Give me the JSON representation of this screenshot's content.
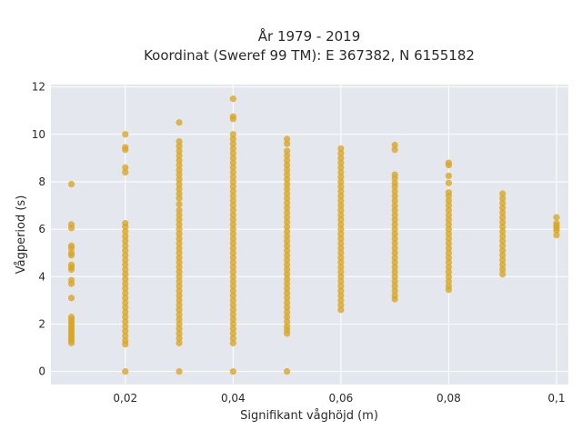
{
  "chart_data": {
    "type": "scatter",
    "title_line1": "År 1979 - 2019",
    "title_line2": "Koordinat (Sweref 99 TM): E 367382, N 6155182",
    "xlabel": "Signifikant våghöjd (m)",
    "ylabel": "Vågperiod (s)",
    "xlim": [
      0.0062,
      0.1022
    ],
    "ylim": [
      -0.55,
      12.1
    ],
    "x_ticks": [
      0.02,
      0.04,
      0.06,
      0.08,
      0.1
    ],
    "x_tick_labels": [
      "0,02",
      "0,04",
      "0,06",
      "0,08",
      "0,1"
    ],
    "y_ticks": [
      0,
      2,
      4,
      6,
      8,
      10,
      12
    ],
    "y_tick_labels": [
      "0",
      "2",
      "4",
      "6",
      "8",
      "10",
      "12"
    ],
    "grid": true,
    "background": "#e5e7ee",
    "marker_color": "#daa520",
    "series": [
      {
        "points": [
          [
            0.01,
            7.9
          ],
          [
            0.01,
            6.2
          ],
          [
            0.01,
            6.05
          ],
          [
            0.01,
            5.3
          ],
          [
            0.01,
            5.2
          ],
          [
            0.01,
            5.0
          ],
          [
            0.01,
            4.9
          ],
          [
            0.01,
            4.5
          ],
          [
            0.01,
            4.4
          ],
          [
            0.01,
            4.3
          ],
          [
            0.01,
            3.85
          ],
          [
            0.01,
            3.7
          ],
          [
            0.01,
            3.1
          ],
          [
            0.01,
            2.3
          ],
          [
            0.01,
            2.2
          ],
          [
            0.01,
            2.1
          ],
          [
            0.01,
            2.0
          ],
          [
            0.01,
            1.9
          ],
          [
            0.01,
            1.8
          ],
          [
            0.01,
            1.7
          ],
          [
            0.01,
            1.6
          ],
          [
            0.01,
            1.5
          ],
          [
            0.01,
            1.4
          ],
          [
            0.01,
            1.3
          ],
          [
            0.01,
            1.2
          ],
          [
            0.02,
            10.0
          ],
          [
            0.02,
            9.45
          ],
          [
            0.02,
            9.35
          ],
          [
            0.02,
            8.6
          ],
          [
            0.02,
            8.4
          ],
          [
            0.02,
            6.25
          ],
          [
            0.02,
            6.1
          ],
          [
            0.02,
            5.9
          ],
          [
            0.02,
            5.7
          ],
          [
            0.02,
            5.5
          ],
          [
            0.02,
            5.3
          ],
          [
            0.02,
            5.1
          ],
          [
            0.02,
            4.9
          ],
          [
            0.02,
            4.7
          ],
          [
            0.02,
            4.5
          ],
          [
            0.02,
            4.3
          ],
          [
            0.02,
            4.1
          ],
          [
            0.02,
            3.9
          ],
          [
            0.02,
            3.7
          ],
          [
            0.02,
            3.5
          ],
          [
            0.02,
            3.3
          ],
          [
            0.02,
            3.1
          ],
          [
            0.02,
            2.9
          ],
          [
            0.02,
            2.7
          ],
          [
            0.02,
            2.5
          ],
          [
            0.02,
            2.3
          ],
          [
            0.02,
            2.1
          ],
          [
            0.02,
            1.9
          ],
          [
            0.02,
            1.7
          ],
          [
            0.02,
            1.5
          ],
          [
            0.02,
            1.3
          ],
          [
            0.02,
            1.15
          ],
          [
            0.02,
            0.0
          ],
          [
            0.03,
            10.5
          ],
          [
            0.03,
            9.7
          ],
          [
            0.03,
            9.5
          ],
          [
            0.03,
            9.3
          ],
          [
            0.03,
            9.1
          ],
          [
            0.03,
            8.9
          ],
          [
            0.03,
            8.7
          ],
          [
            0.03,
            8.5
          ],
          [
            0.03,
            8.3
          ],
          [
            0.03,
            8.1
          ],
          [
            0.03,
            7.9
          ],
          [
            0.03,
            7.7
          ],
          [
            0.03,
            7.5
          ],
          [
            0.03,
            7.3
          ],
          [
            0.03,
            7.05
          ],
          [
            0.03,
            6.8
          ],
          [
            0.03,
            6.6
          ],
          [
            0.03,
            6.4
          ],
          [
            0.03,
            6.2
          ],
          [
            0.03,
            6.0
          ],
          [
            0.03,
            5.8
          ],
          [
            0.03,
            5.6
          ],
          [
            0.03,
            5.4
          ],
          [
            0.03,
            5.2
          ],
          [
            0.03,
            5.0
          ],
          [
            0.03,
            4.8
          ],
          [
            0.03,
            4.6
          ],
          [
            0.03,
            4.4
          ],
          [
            0.03,
            4.2
          ],
          [
            0.03,
            4.0
          ],
          [
            0.03,
            3.8
          ],
          [
            0.03,
            3.6
          ],
          [
            0.03,
            3.4
          ],
          [
            0.03,
            3.2
          ],
          [
            0.03,
            3.0
          ],
          [
            0.03,
            2.8
          ],
          [
            0.03,
            2.6
          ],
          [
            0.03,
            2.4
          ],
          [
            0.03,
            2.2
          ],
          [
            0.03,
            2.0
          ],
          [
            0.03,
            1.8
          ],
          [
            0.03,
            1.6
          ],
          [
            0.03,
            1.4
          ],
          [
            0.03,
            1.2
          ],
          [
            0.03,
            0.0
          ],
          [
            0.04,
            11.5
          ],
          [
            0.04,
            10.75
          ],
          [
            0.04,
            10.65
          ],
          [
            0.04,
            10.0
          ],
          [
            0.04,
            9.8
          ],
          [
            0.04,
            9.6
          ],
          [
            0.04,
            9.4
          ],
          [
            0.04,
            9.2
          ],
          [
            0.04,
            9.0
          ],
          [
            0.04,
            8.8
          ],
          [
            0.04,
            8.6
          ],
          [
            0.04,
            8.4
          ],
          [
            0.04,
            8.2
          ],
          [
            0.04,
            8.0
          ],
          [
            0.04,
            7.8
          ],
          [
            0.04,
            7.6
          ],
          [
            0.04,
            7.4
          ],
          [
            0.04,
            7.2
          ],
          [
            0.04,
            7.0
          ],
          [
            0.04,
            6.8
          ],
          [
            0.04,
            6.6
          ],
          [
            0.04,
            6.4
          ],
          [
            0.04,
            6.2
          ],
          [
            0.04,
            6.0
          ],
          [
            0.04,
            5.8
          ],
          [
            0.04,
            5.6
          ],
          [
            0.04,
            5.4
          ],
          [
            0.04,
            5.2
          ],
          [
            0.04,
            5.0
          ],
          [
            0.04,
            4.8
          ],
          [
            0.04,
            4.6
          ],
          [
            0.04,
            4.4
          ],
          [
            0.04,
            4.2
          ],
          [
            0.04,
            4.0
          ],
          [
            0.04,
            3.8
          ],
          [
            0.04,
            3.6
          ],
          [
            0.04,
            3.4
          ],
          [
            0.04,
            3.2
          ],
          [
            0.04,
            3.0
          ],
          [
            0.04,
            2.8
          ],
          [
            0.04,
            2.6
          ],
          [
            0.04,
            2.4
          ],
          [
            0.04,
            2.2
          ],
          [
            0.04,
            2.0
          ],
          [
            0.04,
            1.8
          ],
          [
            0.04,
            1.6
          ],
          [
            0.04,
            1.4
          ],
          [
            0.04,
            1.2
          ],
          [
            0.04,
            0.0
          ],
          [
            0.05,
            9.8
          ],
          [
            0.05,
            9.6
          ],
          [
            0.05,
            9.3
          ],
          [
            0.05,
            9.1
          ],
          [
            0.05,
            8.9
          ],
          [
            0.05,
            8.7
          ],
          [
            0.05,
            8.5
          ],
          [
            0.05,
            8.3
          ],
          [
            0.05,
            8.1
          ],
          [
            0.05,
            7.9
          ],
          [
            0.05,
            7.7
          ],
          [
            0.05,
            7.5
          ],
          [
            0.05,
            7.3
          ],
          [
            0.05,
            7.1
          ],
          [
            0.05,
            6.9
          ],
          [
            0.05,
            6.7
          ],
          [
            0.05,
            6.5
          ],
          [
            0.05,
            6.3
          ],
          [
            0.05,
            6.1
          ],
          [
            0.05,
            5.9
          ],
          [
            0.05,
            5.7
          ],
          [
            0.05,
            5.5
          ],
          [
            0.05,
            5.3
          ],
          [
            0.05,
            5.1
          ],
          [
            0.05,
            4.9
          ],
          [
            0.05,
            4.7
          ],
          [
            0.05,
            4.5
          ],
          [
            0.05,
            4.3
          ],
          [
            0.05,
            4.1
          ],
          [
            0.05,
            3.9
          ],
          [
            0.05,
            3.7
          ],
          [
            0.05,
            3.5
          ],
          [
            0.05,
            3.3
          ],
          [
            0.05,
            3.1
          ],
          [
            0.05,
            2.9
          ],
          [
            0.05,
            2.7
          ],
          [
            0.05,
            2.5
          ],
          [
            0.05,
            2.3
          ],
          [
            0.05,
            2.1
          ],
          [
            0.05,
            1.9
          ],
          [
            0.05,
            1.75
          ],
          [
            0.05,
            1.6
          ],
          [
            0.05,
            0.0
          ],
          [
            0.06,
            9.4
          ],
          [
            0.06,
            9.2
          ],
          [
            0.06,
            9.0
          ],
          [
            0.06,
            8.8
          ],
          [
            0.06,
            8.6
          ],
          [
            0.06,
            8.4
          ],
          [
            0.06,
            8.2
          ],
          [
            0.06,
            8.0
          ],
          [
            0.06,
            7.8
          ],
          [
            0.06,
            7.6
          ],
          [
            0.06,
            7.4
          ],
          [
            0.06,
            7.2
          ],
          [
            0.06,
            7.0
          ],
          [
            0.06,
            6.8
          ],
          [
            0.06,
            6.6
          ],
          [
            0.06,
            6.4
          ],
          [
            0.06,
            6.2
          ],
          [
            0.06,
            6.0
          ],
          [
            0.06,
            5.8
          ],
          [
            0.06,
            5.6
          ],
          [
            0.06,
            5.4
          ],
          [
            0.06,
            5.2
          ],
          [
            0.06,
            5.0
          ],
          [
            0.06,
            4.8
          ],
          [
            0.06,
            4.6
          ],
          [
            0.06,
            4.4
          ],
          [
            0.06,
            4.2
          ],
          [
            0.06,
            4.0
          ],
          [
            0.06,
            3.8
          ],
          [
            0.06,
            3.6
          ],
          [
            0.06,
            3.4
          ],
          [
            0.06,
            3.2
          ],
          [
            0.06,
            3.0
          ],
          [
            0.06,
            2.8
          ],
          [
            0.06,
            2.6
          ],
          [
            0.07,
            9.55
          ],
          [
            0.07,
            9.35
          ],
          [
            0.07,
            8.3
          ],
          [
            0.07,
            8.15
          ],
          [
            0.07,
            7.95
          ],
          [
            0.07,
            7.8
          ],
          [
            0.07,
            7.6
          ],
          [
            0.07,
            7.4
          ],
          [
            0.07,
            7.2
          ],
          [
            0.07,
            7.0
          ],
          [
            0.07,
            6.8
          ],
          [
            0.07,
            6.6
          ],
          [
            0.07,
            6.4
          ],
          [
            0.07,
            6.2
          ],
          [
            0.07,
            6.0
          ],
          [
            0.07,
            5.8
          ],
          [
            0.07,
            5.6
          ],
          [
            0.07,
            5.4
          ],
          [
            0.07,
            5.2
          ],
          [
            0.07,
            5.0
          ],
          [
            0.07,
            4.8
          ],
          [
            0.07,
            4.6
          ],
          [
            0.07,
            4.4
          ],
          [
            0.07,
            4.2
          ],
          [
            0.07,
            4.0
          ],
          [
            0.07,
            3.8
          ],
          [
            0.07,
            3.6
          ],
          [
            0.07,
            3.4
          ],
          [
            0.07,
            3.2
          ],
          [
            0.07,
            3.05
          ],
          [
            0.08,
            8.8
          ],
          [
            0.08,
            8.7
          ],
          [
            0.08,
            8.25
          ],
          [
            0.08,
            7.95
          ],
          [
            0.08,
            7.55
          ],
          [
            0.08,
            7.4
          ],
          [
            0.08,
            7.2
          ],
          [
            0.08,
            7.0
          ],
          [
            0.08,
            6.8
          ],
          [
            0.08,
            6.6
          ],
          [
            0.08,
            6.4
          ],
          [
            0.08,
            6.2
          ],
          [
            0.08,
            6.0
          ],
          [
            0.08,
            5.8
          ],
          [
            0.08,
            5.6
          ],
          [
            0.08,
            5.4
          ],
          [
            0.08,
            5.2
          ],
          [
            0.08,
            5.0
          ],
          [
            0.08,
            4.8
          ],
          [
            0.08,
            4.6
          ],
          [
            0.08,
            4.4
          ],
          [
            0.08,
            4.2
          ],
          [
            0.08,
            4.0
          ],
          [
            0.08,
            3.8
          ],
          [
            0.08,
            3.6
          ],
          [
            0.08,
            3.45
          ],
          [
            0.09,
            7.5
          ],
          [
            0.09,
            7.3
          ],
          [
            0.09,
            7.1
          ],
          [
            0.09,
            6.9
          ],
          [
            0.09,
            6.7
          ],
          [
            0.09,
            6.5
          ],
          [
            0.09,
            6.3
          ],
          [
            0.09,
            6.1
          ],
          [
            0.09,
            5.9
          ],
          [
            0.09,
            5.7
          ],
          [
            0.09,
            5.5
          ],
          [
            0.09,
            5.3
          ],
          [
            0.09,
            5.1
          ],
          [
            0.09,
            4.9
          ],
          [
            0.09,
            4.7
          ],
          [
            0.09,
            4.5
          ],
          [
            0.09,
            4.3
          ],
          [
            0.09,
            4.1
          ],
          [
            0.1,
            6.5
          ],
          [
            0.1,
            6.25
          ],
          [
            0.1,
            6.15
          ],
          [
            0.1,
            6.05
          ],
          [
            0.1,
            5.95
          ],
          [
            0.1,
            5.75
          ]
        ]
      }
    ]
  }
}
